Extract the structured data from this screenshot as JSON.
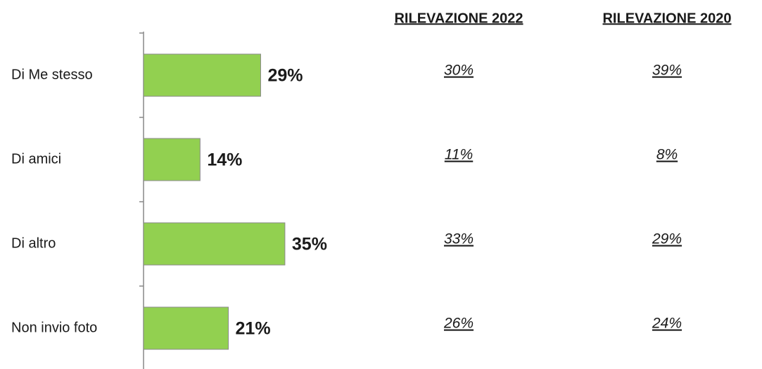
{
  "chart_data": {
    "type": "bar",
    "orientation": "horizontal",
    "categories": [
      "Di Me stesso",
      "Di amici",
      "Di altro",
      "Non invio foto"
    ],
    "values": [
      29,
      14,
      35,
      21
    ],
    "value_labels": [
      "29%",
      "14%",
      "35%",
      "21%"
    ],
    "color": "#92d050",
    "comparisons": [
      {
        "title": "RILEVAZIONE 2022",
        "labels": [
          "30%",
          "11%",
          "33%",
          "26%"
        ]
      },
      {
        "title": "RILEVAZIONE 2020",
        "labels": [
          "39%",
          "8%",
          "29%",
          "24%"
        ]
      }
    ]
  }
}
